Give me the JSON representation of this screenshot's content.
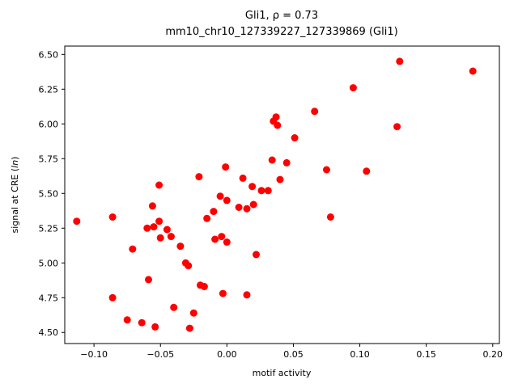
{
  "figure": {
    "title_line1": "Gli1, ρ = 0.73",
    "title_line2": "mm10_chr10_127339227_127339869 (Gli1)",
    "xlabel": "motif activity",
    "ylabel_prefix": "signal at CRE (",
    "ylabel_italic": "ln",
    "ylabel_suffix": ")",
    "marker_color": "#ff0000",
    "spine_color": "#000000"
  },
  "chart_data": {
    "type": "scatter",
    "title": "Gli1, ρ = 0.73",
    "subtitle": "mm10_chr10_127339227_127339869 (Gli1)",
    "xlabel": "motif activity",
    "ylabel": "signal at CRE (ln)",
    "legend": "none",
    "grid": false,
    "xlim": [
      -0.122,
      0.205
    ],
    "ylim": [
      4.42,
      6.56
    ],
    "xticks": [
      -0.1,
      -0.05,
      0.0,
      0.05,
      0.1,
      0.15,
      0.2
    ],
    "xtick_labels": [
      "−0.10",
      "−0.05",
      "0.00",
      "0.05",
      "0.10",
      "0.15",
      "0.20"
    ],
    "yticks": [
      4.5,
      4.75,
      5.0,
      5.25,
      5.5,
      5.75,
      6.0,
      6.25,
      6.5
    ],
    "ytick_labels": [
      "4.50",
      "4.75",
      "5.00",
      "5.25",
      "5.50",
      "5.75",
      "6.00",
      "6.25",
      "6.50"
    ],
    "series_name": "CRE signal vs motif activity",
    "points": [
      [
        -0.113,
        5.3
      ],
      [
        -0.086,
        5.33
      ],
      [
        -0.086,
        4.75
      ],
      [
        -0.075,
        4.59
      ],
      [
        -0.071,
        5.1
      ],
      [
        -0.064,
        4.57
      ],
      [
        -0.06,
        5.25
      ],
      [
        -0.059,
        4.88
      ],
      [
        -0.056,
        5.41
      ],
      [
        -0.055,
        5.26
      ],
      [
        -0.054,
        4.54
      ],
      [
        -0.051,
        5.56
      ],
      [
        -0.051,
        5.3
      ],
      [
        -0.05,
        5.18
      ],
      [
        -0.045,
        5.24
      ],
      [
        -0.042,
        5.19
      ],
      [
        -0.04,
        4.68
      ],
      [
        -0.035,
        5.12
      ],
      [
        -0.031,
        5.0
      ],
      [
        -0.029,
        4.98
      ],
      [
        -0.028,
        4.53
      ],
      [
        -0.025,
        4.64
      ],
      [
        -0.021,
        5.62
      ],
      [
        -0.02,
        4.84
      ],
      [
        -0.017,
        4.83
      ],
      [
        -0.015,
        5.32
      ],
      [
        -0.01,
        5.37
      ],
      [
        -0.009,
        5.17
      ],
      [
        -0.005,
        5.48
      ],
      [
        -0.004,
        5.19
      ],
      [
        -0.003,
        4.78
      ],
      [
        -0.001,
        5.69
      ],
      [
        0.0,
        5.45
      ],
      [
        0.0,
        5.15
      ],
      [
        0.009,
        5.4
      ],
      [
        0.012,
        5.61
      ],
      [
        0.015,
        5.39
      ],
      [
        0.015,
        4.77
      ],
      [
        0.019,
        5.55
      ],
      [
        0.02,
        5.42
      ],
      [
        0.022,
        5.06
      ],
      [
        0.026,
        5.52
      ],
      [
        0.031,
        5.52
      ],
      [
        0.034,
        5.74
      ],
      [
        0.035,
        6.02
      ],
      [
        0.037,
        6.05
      ],
      [
        0.038,
        5.99
      ],
      [
        0.04,
        5.6
      ],
      [
        0.045,
        5.72
      ],
      [
        0.051,
        5.9
      ],
      [
        0.066,
        6.09
      ],
      [
        0.075,
        5.67
      ],
      [
        0.078,
        5.33
      ],
      [
        0.095,
        6.26
      ],
      [
        0.105,
        5.66
      ],
      [
        0.128,
        5.98
      ],
      [
        0.13,
        6.45
      ],
      [
        0.185,
        6.38
      ]
    ]
  }
}
